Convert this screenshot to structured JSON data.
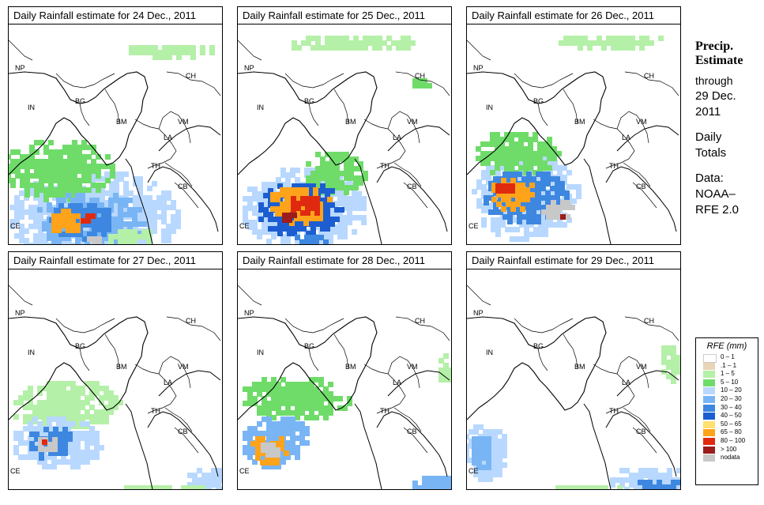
{
  "panels": [
    {
      "title": "Daily Rainfall estimate for  24 Dec., 2011",
      "rain": [
        {
          "level": 4,
          "cx": 105,
          "cy": 240,
          "rx": 110,
          "ry": 60
        },
        {
          "level": 3,
          "cx": 60,
          "cy": 180,
          "rx": 70,
          "ry": 40
        },
        {
          "level": 5,
          "cx": 100,
          "cy": 245,
          "rx": 70,
          "ry": 38
        },
        {
          "level": 6,
          "cx": 90,
          "cy": 245,
          "rx": 45,
          "ry": 25
        },
        {
          "level": 9,
          "cx": 70,
          "cy": 245,
          "rx": 22,
          "ry": 18
        },
        {
          "level": 10,
          "cx": 95,
          "cy": 242,
          "rx": 10,
          "ry": 9
        },
        {
          "level": 12,
          "cx": 105,
          "cy": 270,
          "rx": 12,
          "ry": 8
        },
        {
          "level": 2,
          "cx": 200,
          "cy": 30,
          "rx": 60,
          "ry": 10
        },
        {
          "level": 2,
          "cx": 150,
          "cy": 265,
          "rx": 30,
          "ry": 12
        }
      ]
    },
    {
      "title": "Daily Rainfall estimate for  25 Dec., 2011",
      "rain": [
        {
          "level": 4,
          "cx": 80,
          "cy": 230,
          "rx": 80,
          "ry": 55
        },
        {
          "level": 3,
          "cx": 120,
          "cy": 185,
          "rx": 40,
          "ry": 30
        },
        {
          "level": 7,
          "cx": 75,
          "cy": 230,
          "rx": 55,
          "ry": 35
        },
        {
          "level": 9,
          "cx": 75,
          "cy": 225,
          "rx": 40,
          "ry": 25
        },
        {
          "level": 10,
          "cx": 80,
          "cy": 225,
          "rx": 25,
          "ry": 14
        },
        {
          "level": 11,
          "cx": 60,
          "cy": 240,
          "rx": 10,
          "ry": 8
        },
        {
          "level": 6,
          "cx": 90,
          "cy": 270,
          "rx": 30,
          "ry": 10
        },
        {
          "level": 2,
          "cx": 140,
          "cy": 20,
          "rx": 90,
          "ry": 12
        },
        {
          "level": 3,
          "cx": 230,
          "cy": 70,
          "rx": 15,
          "ry": 8
        }
      ]
    },
    {
      "title": "Daily Rainfall estimate for  26 Dec., 2011",
      "rain": [
        {
          "level": 4,
          "cx": 70,
          "cy": 215,
          "rx": 70,
          "ry": 55
        },
        {
          "level": 3,
          "cx": 60,
          "cy": 160,
          "rx": 55,
          "ry": 30
        },
        {
          "level": 6,
          "cx": 70,
          "cy": 215,
          "rx": 55,
          "ry": 35
        },
        {
          "level": 9,
          "cx": 55,
          "cy": 210,
          "rx": 30,
          "ry": 22
        },
        {
          "level": 10,
          "cx": 45,
          "cy": 205,
          "rx": 15,
          "ry": 10
        },
        {
          "level": 12,
          "cx": 110,
          "cy": 230,
          "rx": 22,
          "ry": 14
        },
        {
          "level": 11,
          "cx": 120,
          "cy": 240,
          "rx": 8,
          "ry": 6
        },
        {
          "level": 2,
          "cx": 180,
          "cy": 18,
          "rx": 70,
          "ry": 10
        }
      ]
    },
    {
      "title": "Daily Rainfall estimate for  27 Dec., 2011",
      "rain": [
        {
          "level": 2,
          "cx": 70,
          "cy": 170,
          "rx": 70,
          "ry": 35
        },
        {
          "level": 4,
          "cx": 60,
          "cy": 215,
          "rx": 60,
          "ry": 35
        },
        {
          "level": 6,
          "cx": 50,
          "cy": 215,
          "rx": 30,
          "ry": 22
        },
        {
          "level": 12,
          "cx": 45,
          "cy": 218,
          "rx": 14,
          "ry": 12
        },
        {
          "level": 10,
          "cx": 42,
          "cy": 214,
          "rx": 6,
          "ry": 5
        },
        {
          "level": 4,
          "cx": 250,
          "cy": 265,
          "rx": 30,
          "ry": 20
        },
        {
          "level": 2,
          "cx": 200,
          "cy": 275,
          "rx": 60,
          "ry": 8
        }
      ]
    },
    {
      "title": "Daily Rainfall estimate for  28 Dec., 2011",
      "rain": [
        {
          "level": 3,
          "cx": 70,
          "cy": 160,
          "rx": 70,
          "ry": 30
        },
        {
          "level": 5,
          "cx": 45,
          "cy": 215,
          "rx": 45,
          "ry": 35
        },
        {
          "level": 9,
          "cx": 35,
          "cy": 225,
          "rx": 25,
          "ry": 20
        },
        {
          "level": 12,
          "cx": 38,
          "cy": 225,
          "rx": 15,
          "ry": 12
        },
        {
          "level": 5,
          "cx": 245,
          "cy": 270,
          "rx": 30,
          "ry": 15
        },
        {
          "level": 2,
          "cx": 260,
          "cy": 120,
          "rx": 12,
          "ry": 20
        }
      ]
    },
    {
      "title": "Daily Rainfall estimate for  29 Dec., 2011",
      "rain": [
        {
          "level": 4,
          "cx": 20,
          "cy": 230,
          "rx": 30,
          "ry": 40
        },
        {
          "level": 5,
          "cx": 15,
          "cy": 230,
          "rx": 15,
          "ry": 25
        },
        {
          "level": 4,
          "cx": 230,
          "cy": 265,
          "rx": 55,
          "ry": 20
        },
        {
          "level": 6,
          "cx": 240,
          "cy": 270,
          "rx": 30,
          "ry": 10
        },
        {
          "level": 2,
          "cx": 150,
          "cy": 275,
          "rx": 50,
          "ry": 8
        },
        {
          "level": 2,
          "cx": 255,
          "cy": 115,
          "rx": 15,
          "ry": 25
        }
      ]
    }
  ],
  "country_labels": [
    "NP",
    "CH",
    "IN",
    "BG",
    "BM",
    "VM",
    "LA",
    "TH",
    "CB",
    "CE"
  ],
  "sidebar": {
    "line1": "Precip.",
    "line2": "Estimate",
    "line3": "through",
    "line4": "29 Dec.",
    "line5": "2011",
    "line6": "Daily",
    "line7": "Totals",
    "line8": "Data:",
    "line9": "NOAA–",
    "line10": "RFE 2.0"
  },
  "legend": {
    "title": "RFE (mm)",
    "items": [
      {
        "label": "0 – 1",
        "color": "#ffffff"
      },
      {
        "label": ".1 – 1",
        "color": "#e8d5b7"
      },
      {
        "label": "1 – 5",
        "color": "#b5f0a8"
      },
      {
        "label": "5 – 10",
        "color": "#6fdc6a"
      },
      {
        "label": "10 – 20",
        "color": "#b8d8ff"
      },
      {
        "label": "20 – 30",
        "color": "#79b5f5"
      },
      {
        "label": "30 – 40",
        "color": "#3d87e0"
      },
      {
        "label": "40 – 50",
        "color": "#1c5ed1"
      },
      {
        "label": "50 – 65",
        "color": "#ffe070"
      },
      {
        "label": "65 – 80",
        "color": "#ffa31a"
      },
      {
        "label": "80 – 100",
        "color": "#e02a10"
      },
      {
        "label": "> 100",
        "color": "#9c1c1c"
      },
      {
        "label": "nodata",
        "color": "#c8c8c8"
      }
    ]
  }
}
